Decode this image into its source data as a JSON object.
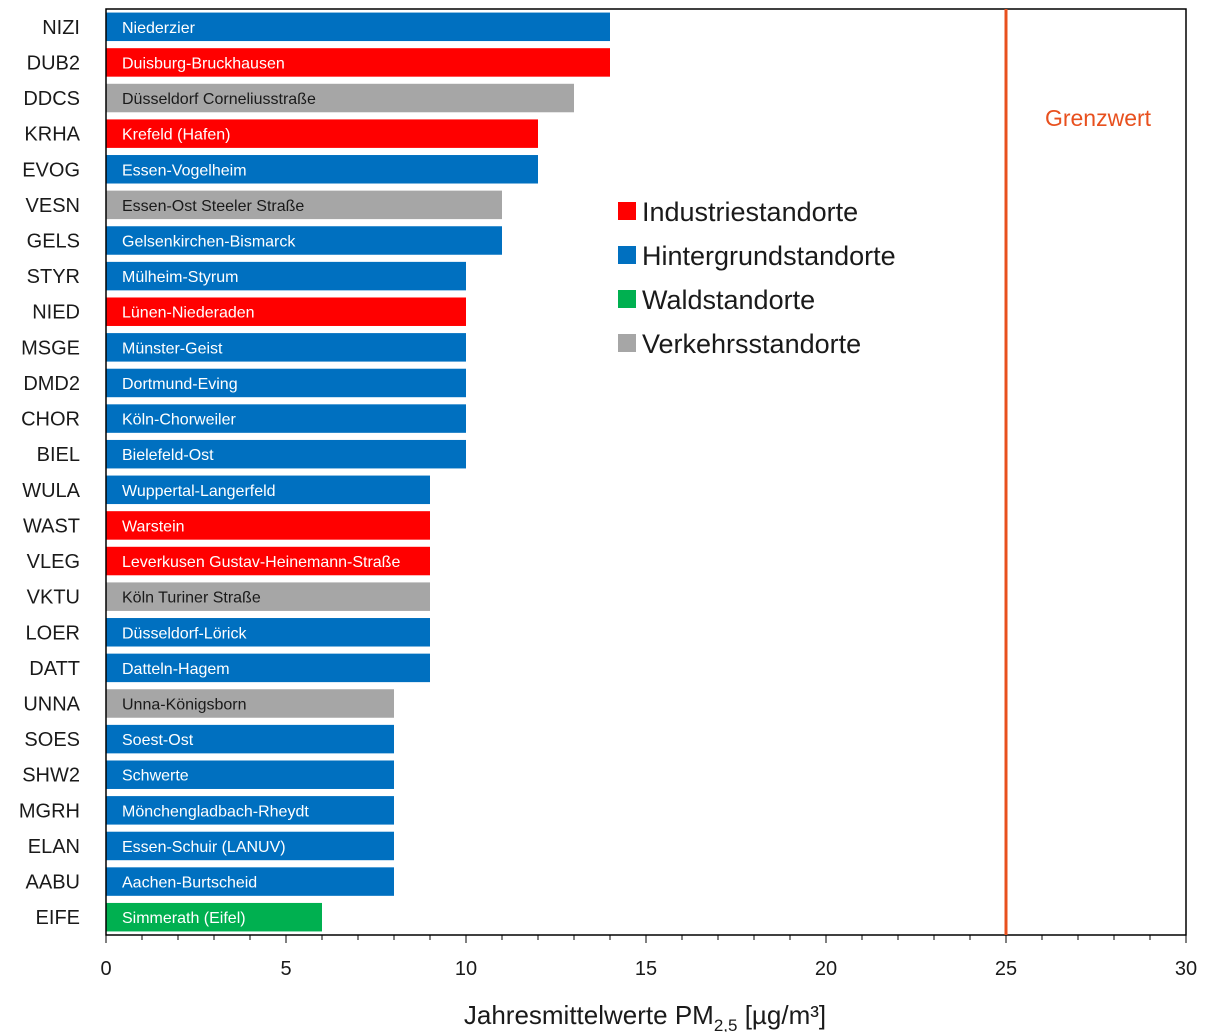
{
  "chart_data": {
    "type": "bar",
    "orientation": "horizontal",
    "xlabel_main": "Jahresmittelwerte PM",
    "xlabel_sub": "2,5",
    "xlabel_unit": " [µg/m³]",
    "xlim": [
      0,
      30
    ],
    "xticks": [
      0,
      5,
      10,
      15,
      20,
      25,
      30
    ],
    "grid": false,
    "legend_position": "upper-center",
    "reference_line": {
      "value": 25,
      "label": "Grenzwert",
      "color": "#e8501e"
    },
    "types": {
      "industrie": {
        "label": "Industriestandorte",
        "color": "#ff0000"
      },
      "hintergrund": {
        "label": "Hintergrundstandorte",
        "color": "#0070c0"
      },
      "wald": {
        "label": "Waldstandorte",
        "color": "#00b050"
      },
      "verkehr": {
        "label": "Verkehrsstandorte",
        "color": "#a6a6a6"
      }
    },
    "legend_order": [
      "industrie",
      "hintergrund",
      "wald",
      "verkehr"
    ],
    "bars": [
      {
        "code": "NIZI",
        "station": "Niederzier",
        "value": 14,
        "type": "hintergrund"
      },
      {
        "code": "DUB2",
        "station": "Duisburg-Bruckhausen",
        "value": 14,
        "type": "industrie"
      },
      {
        "code": "DDCS",
        "station": "Düsseldorf Corneliusstraße",
        "value": 13,
        "type": "verkehr"
      },
      {
        "code": "KRHA",
        "station": "Krefeld (Hafen)",
        "value": 12,
        "type": "industrie"
      },
      {
        "code": "EVOG",
        "station": "Essen-Vogelheim",
        "value": 12,
        "type": "hintergrund"
      },
      {
        "code": "VESN",
        "station": "Essen-Ost Steeler Straße",
        "value": 11,
        "type": "verkehr"
      },
      {
        "code": "GELS",
        "station": "Gelsenkirchen-Bismarck",
        "value": 11,
        "type": "hintergrund"
      },
      {
        "code": "STYR",
        "station": "Mülheim-Styrum",
        "value": 10,
        "type": "hintergrund"
      },
      {
        "code": "NIED",
        "station": "Lünen-Niederaden",
        "value": 10,
        "type": "industrie"
      },
      {
        "code": "MSGE",
        "station": "Münster-Geist",
        "value": 10,
        "type": "hintergrund"
      },
      {
        "code": "DMD2",
        "station": "Dortmund-Eving",
        "value": 10,
        "type": "hintergrund"
      },
      {
        "code": "CHOR",
        "station": "Köln-Chorweiler",
        "value": 10,
        "type": "hintergrund"
      },
      {
        "code": "BIEL",
        "station": "Bielefeld-Ost",
        "value": 10,
        "type": "hintergrund"
      },
      {
        "code": "WULA",
        "station": "Wuppertal-Langerfeld",
        "value": 9,
        "type": "hintergrund"
      },
      {
        "code": "WAST",
        "station": "Warstein",
        "value": 9,
        "type": "industrie"
      },
      {
        "code": "VLEG",
        "station": "Leverkusen Gustav-Heinemann-Straße",
        "value": 9,
        "type": "industrie"
      },
      {
        "code": "VKTU",
        "station": "Köln Turiner Straße",
        "value": 9,
        "type": "verkehr"
      },
      {
        "code": "LOER",
        "station": "Düsseldorf-Lörick",
        "value": 9,
        "type": "hintergrund"
      },
      {
        "code": "DATT",
        "station": "Datteln-Hagem",
        "value": 9,
        "type": "hintergrund"
      },
      {
        "code": "UNNA",
        "station": "Unna-Königsborn",
        "value": 8,
        "type": "verkehr"
      },
      {
        "code": "SOES",
        "station": "Soest-Ost",
        "value": 8,
        "type": "hintergrund"
      },
      {
        "code": "SHW2",
        "station": "Schwerte",
        "value": 8,
        "type": "hintergrund"
      },
      {
        "code": "MGRH",
        "station": "Mönchengladbach-Rheydt",
        "value": 8,
        "type": "hintergrund"
      },
      {
        "code": "ELAN",
        "station": "Essen-Schuir (LANUV)",
        "value": 8,
        "type": "hintergrund"
      },
      {
        "code": "AABU",
        "station": "Aachen-Burtscheid",
        "value": 8,
        "type": "hintergrund"
      },
      {
        "code": "EIFE",
        "station": "Simmerath (Eifel)",
        "value": 6,
        "type": "wald"
      }
    ]
  }
}
